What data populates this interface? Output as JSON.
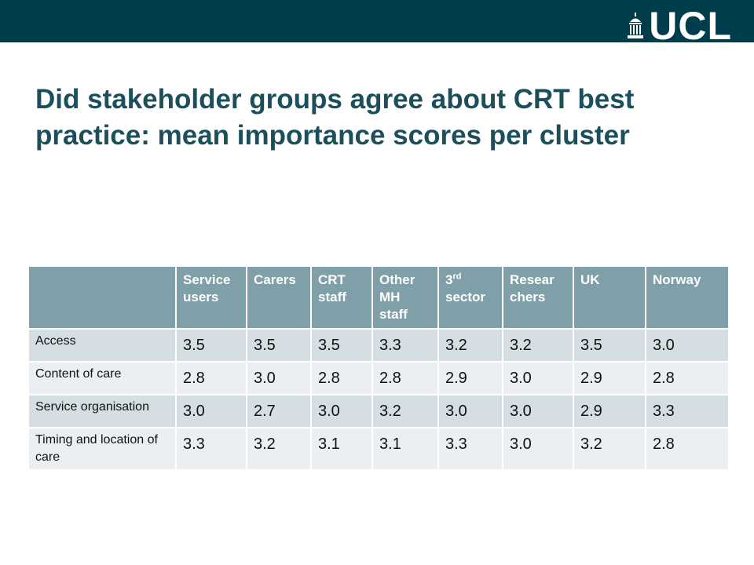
{
  "header": {
    "logo_text": "UCL",
    "colors": {
      "bar": "#003d4c",
      "title": "#1b4f5c",
      "table_header": "#7f9fa9"
    }
  },
  "slide": {
    "title": "Did stakeholder groups agree about CRT best practice: mean importance scores per cluster"
  },
  "table": {
    "corner": "",
    "columns": [
      "Service users",
      "Carers",
      "CRT staff",
      "Other MH staff",
      "3",
      "Resear chers",
      "UK",
      "Norway"
    ],
    "col5_sup": "rd",
    "col5_rest": "sector",
    "rows": [
      {
        "label": "Access",
        "values": [
          "3.5",
          "3.5",
          "3.5",
          "3.3",
          "3.2",
          "3.2",
          "3.5",
          "3.0"
        ]
      },
      {
        "label": "Content of care",
        "values": [
          "2.8",
          "3.0",
          "2.8",
          "2.8",
          "2.9",
          "3.0",
          "2.9",
          "2.8"
        ]
      },
      {
        "label": "Service organisation",
        "values": [
          "3.0",
          "2.7",
          "3.0",
          "3.2",
          "3.0",
          "3.0",
          "2.9",
          "3.3"
        ]
      },
      {
        "label": "Timing and location of care",
        "values": [
          "3.3",
          "3.2",
          "3.1",
          "3.1",
          "3.3",
          "3.0",
          "3.2",
          "2.8"
        ]
      }
    ]
  }
}
